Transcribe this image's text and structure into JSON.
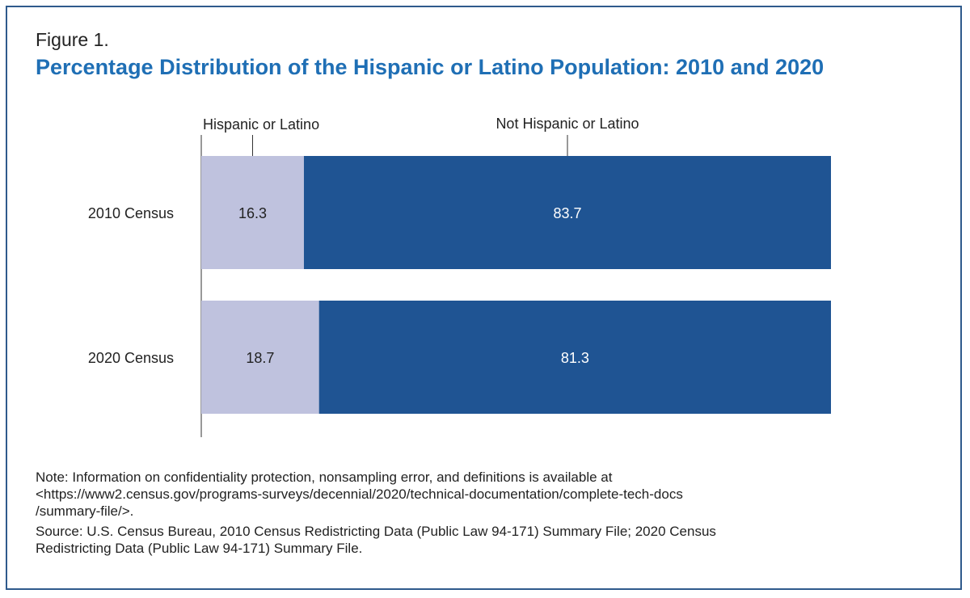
{
  "figure_label": "Figure 1.",
  "title": "Percentage Distribution of the Hispanic or Latino Population: 2010 and 2020",
  "colors": {
    "hispanic": "#bfc2de",
    "not_hispanic": "#1f5493",
    "title": "#1f6fb5",
    "frame": "#2f5a8c"
  },
  "chart_data": {
    "type": "bar",
    "orientation": "horizontal",
    "stacked": true,
    "title": "Percentage Distribution of the Hispanic or Latino Population: 2010 and 2020",
    "categories": [
      "2010 Census",
      "2020 Census"
    ],
    "series": [
      {
        "name": "Hispanic or Latino",
        "values": [
          16.3,
          18.7
        ]
      },
      {
        "name": "Not Hispanic or Latino",
        "values": [
          83.7,
          81.3
        ]
      }
    ],
    "xlim": [
      0,
      100
    ],
    "grid": false,
    "legend": "top"
  },
  "notes": {
    "note_line1": "Note: Information on confidentiality protection, nonsampling error, and definitions is available at",
    "note_line2": "<https://www2.census.gov/programs-surveys/decennial/2020/technical-documentation/complete-tech-docs",
    "note_line3": "/summary-file/>.",
    "source_line1": "Source: U.S. Census Bureau, 2010 Census Redistricting Data (Public Law 94-171) Summary File; 2020 Census",
    "source_line2": "Redistricting Data (Public Law 94-171) Summary File."
  }
}
